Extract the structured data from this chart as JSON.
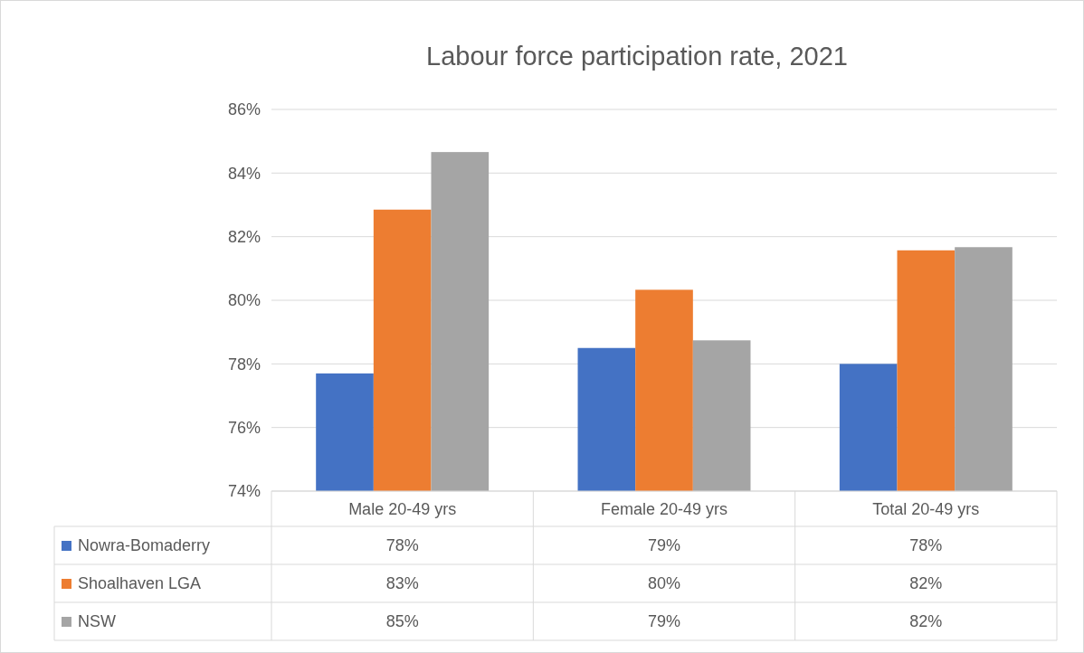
{
  "chart_data": {
    "type": "bar",
    "title": "Labour force participation rate, 2021",
    "categories": [
      "Male 20-49 yrs",
      "Female 20-49 yrs",
      "Total 20-49 yrs"
    ],
    "series": [
      {
        "name": "Nowra-Bomaderry",
        "color": "#4472c4",
        "values": [
          77.7,
          78.5,
          78.0
        ],
        "value_labels": [
          "78%",
          "79%",
          "78%"
        ]
      },
      {
        "name": "Shoalhaven LGA",
        "color": "#ed7d31",
        "values": [
          82.85,
          80.33,
          81.57
        ],
        "value_labels": [
          "83%",
          "80%",
          "82%"
        ]
      },
      {
        "name": "NSW",
        "color": "#a5a5a5",
        "values": [
          84.66,
          78.74,
          81.67
        ],
        "value_labels": [
          "85%",
          "79%",
          "82%"
        ]
      }
    ],
    "ylim": [
      74,
      86
    ],
    "yticks": [
      {
        "value": 74,
        "label": "74%"
      },
      {
        "value": 76,
        "label": "76%"
      },
      {
        "value": 78,
        "label": "78%"
      },
      {
        "value": 80,
        "label": "80%"
      },
      {
        "value": 82,
        "label": "82%"
      },
      {
        "value": 84,
        "label": "84%"
      },
      {
        "value": 86,
        "label": "86%"
      }
    ],
    "grid": "y",
    "legend": "bottom"
  }
}
